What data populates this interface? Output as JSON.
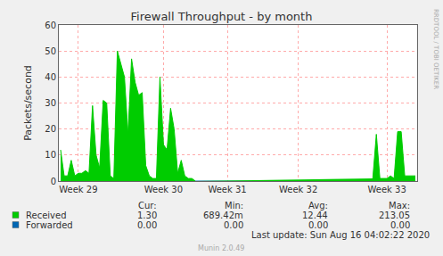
{
  "chart_data": {
    "type": "area",
    "title": "Firewall Throughput - by month",
    "y_label": "Packets/second",
    "categories": [
      null,
      null,
      null,
      null,
      null,
      "Week 29",
      null,
      null,
      null,
      null,
      null,
      null,
      null,
      null,
      null,
      null,
      null,
      null,
      null,
      null,
      null,
      null,
      null,
      null,
      null,
      null,
      null,
      null,
      null,
      "Week 30",
      null,
      null,
      null,
      null,
      null,
      null,
      null,
      null,
      null,
      null,
      null,
      null,
      null,
      null,
      null,
      null,
      null,
      "Week 31",
      null,
      null,
      null,
      null,
      null,
      null,
      null,
      null,
      null,
      null,
      null,
      null,
      null,
      null,
      null,
      null,
      null,
      null,
      null,
      "Week 32",
      null,
      null,
      null,
      null,
      null,
      null,
      null,
      null,
      null,
      null,
      null,
      null,
      null,
      null,
      null,
      null,
      null,
      null,
      null,
      null,
      null,
      null,
      null,
      null,
      "Week 33",
      null,
      null,
      null,
      null,
      null,
      null,
      null,
      null
    ],
    "series": [
      {
        "name": "Received",
        "color": "#00cc00",
        "values": [
          12,
          2,
          2,
          8,
          2,
          3,
          3,
          4,
          3,
          29,
          10,
          5,
          31,
          30,
          2,
          1,
          50,
          45,
          40,
          18,
          47,
          38,
          33,
          34,
          6,
          2,
          1,
          1,
          40,
          14,
          12,
          28,
          20,
          3,
          8,
          2,
          1,
          1,
          0,
          null,
          null,
          null,
          null,
          null,
          null,
          null,
          null,
          null,
          null,
          null,
          null,
          null,
          null,
          null,
          null,
          null,
          null,
          null,
          null,
          null,
          null,
          null,
          null,
          null,
          null,
          null,
          null,
          null,
          null,
          null,
          null,
          null,
          null,
          null,
          null,
          null,
          null,
          null,
          null,
          null,
          null,
          null,
          null,
          null,
          null,
          null,
          null,
          null,
          1,
          18,
          1,
          1,
          1,
          2,
          1,
          19,
          19,
          2,
          2,
          2,
          2
        ]
      },
      {
        "name": "Forwarded",
        "color": "#0066b3",
        "values": [
          0,
          0,
          0,
          0,
          0,
          0,
          0,
          0,
          0,
          0,
          0,
          0,
          0,
          0,
          0,
          0,
          0,
          0,
          0,
          0,
          0,
          0,
          0,
          0,
          0,
          0,
          0,
          0,
          0,
          0,
          0,
          0,
          0,
          0,
          0,
          0,
          0,
          0,
          0,
          0,
          0,
          0,
          0,
          0,
          0,
          0,
          0,
          0,
          0,
          0,
          0,
          0,
          0,
          0,
          0,
          0,
          0,
          0,
          0,
          0,
          0,
          0,
          0,
          0,
          0,
          0,
          0,
          0,
          0,
          0,
          0,
          0,
          0,
          0,
          0,
          0,
          0,
          0,
          0,
          0,
          0,
          0,
          0,
          0,
          0,
          0,
          0,
          0,
          0,
          0,
          0,
          0,
          0,
          0,
          0,
          0,
          0,
          0,
          0,
          0,
          0
        ]
      }
    ],
    "ylim": [
      0,
      60
    ],
    "yticks": [
      0,
      10,
      20,
      30,
      40,
      50,
      60
    ],
    "grid": true,
    "summary": {
      "columns": [
        "Cur:",
        "Min:",
        "Avg:",
        "Max:"
      ],
      "rows": [
        [
          "1.30",
          "689.42m",
          "12.44",
          "213.05"
        ],
        [
          "0.00",
          "0.00",
          "0.00",
          "0.00"
        ]
      ]
    },
    "footer": "Last update: Sun Aug 16 04:02:22 2020",
    "credit": "Munin 2.0.49",
    "side_text": "RRDTOOL / TOBI OETIKER"
  }
}
